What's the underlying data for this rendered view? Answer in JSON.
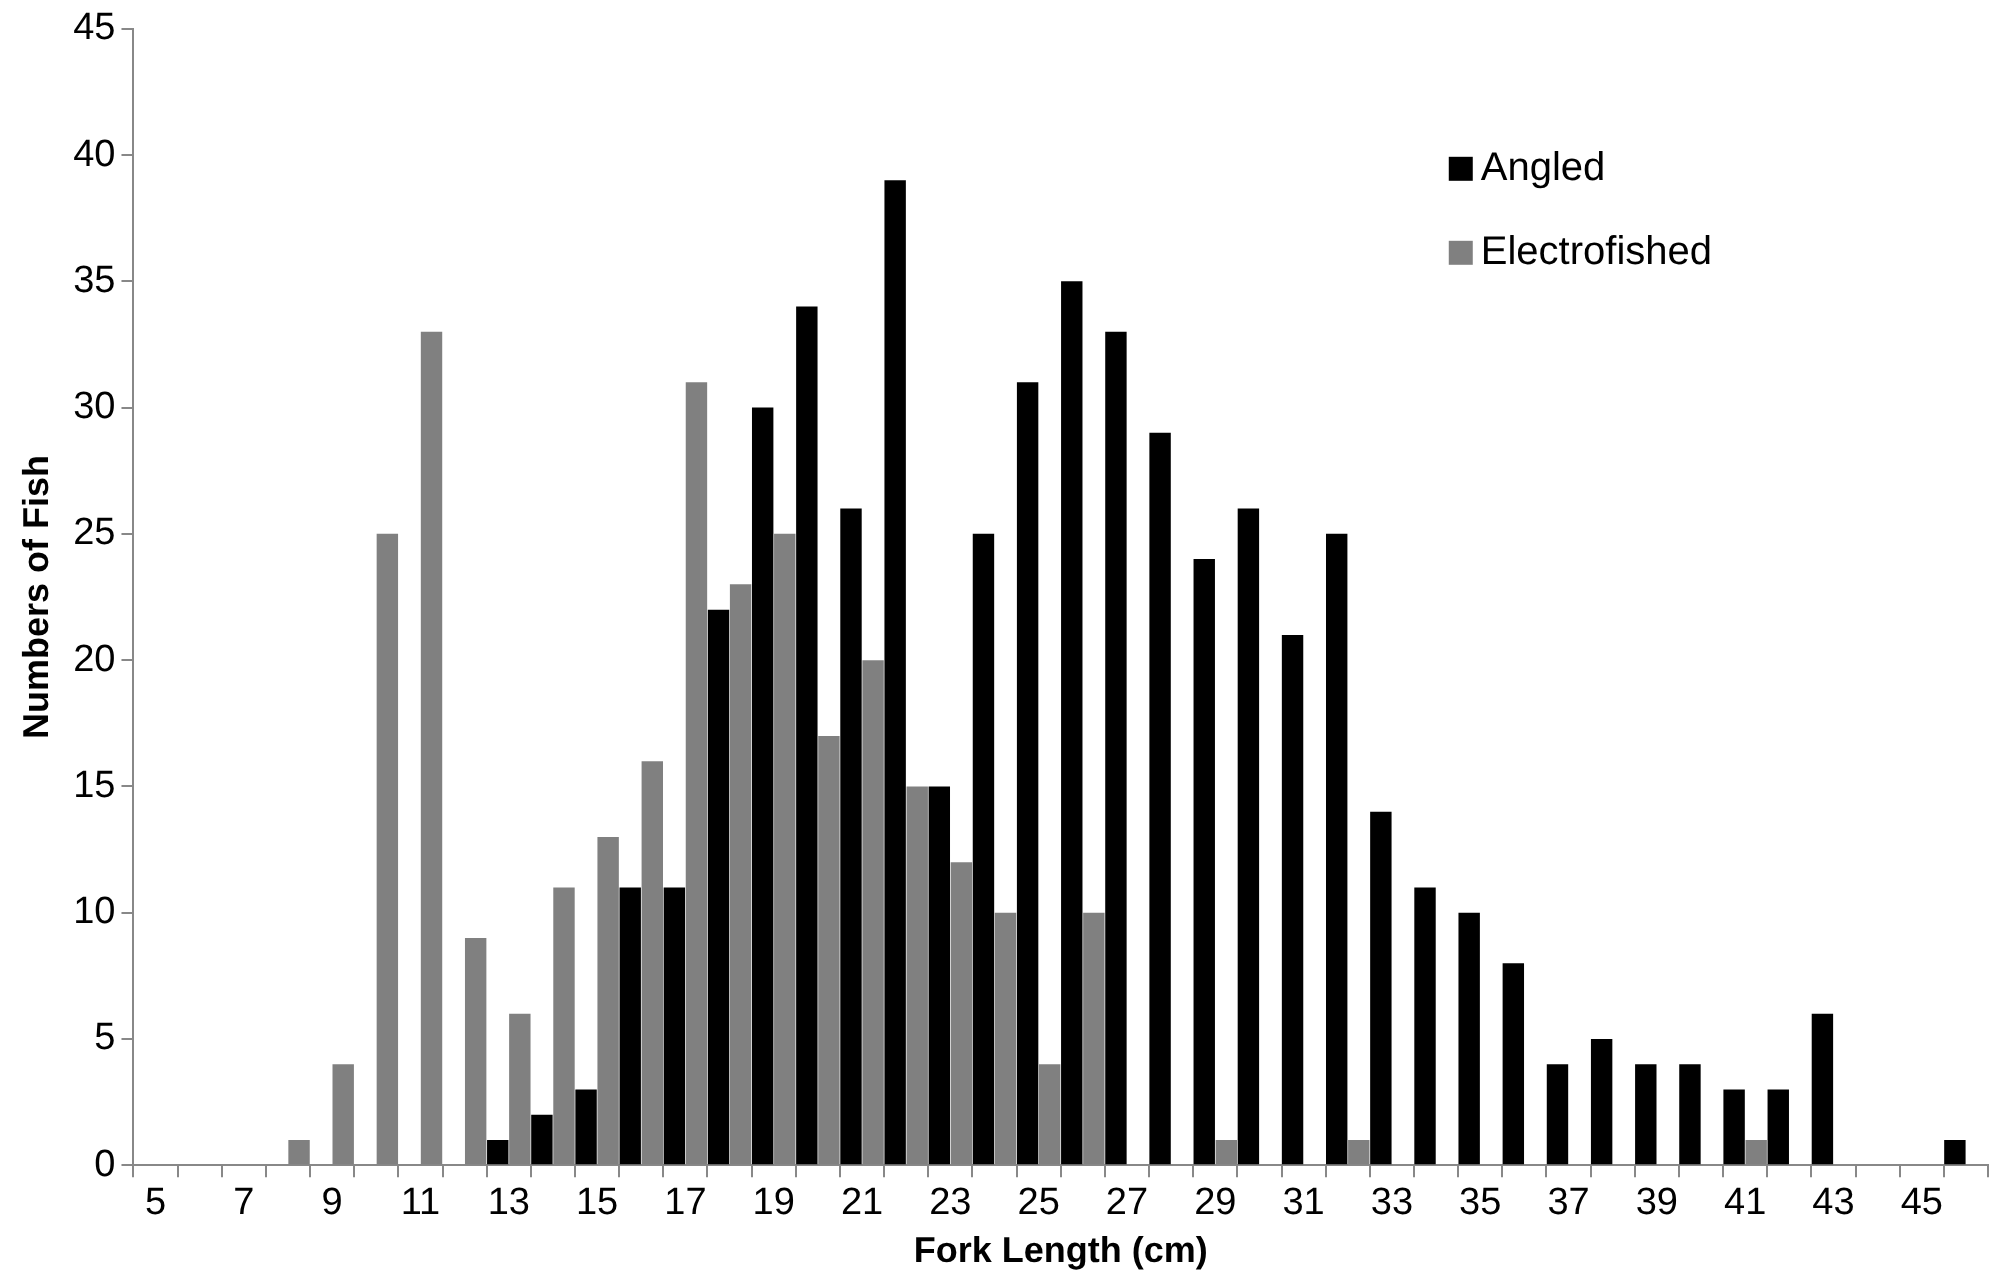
{
  "chart_data": {
    "type": "bar",
    "xlabel": "Fork Length (cm)",
    "ylabel": "Numbers of Fish",
    "categories": [
      "5",
      null,
      "7",
      null,
      "9",
      null,
      "11",
      null,
      "13",
      null,
      "15",
      null,
      "17",
      null,
      "19",
      null,
      "21",
      null,
      "23",
      null,
      "25",
      null,
      "27",
      null,
      "29",
      null,
      "31",
      null,
      "33",
      null,
      "35",
      null,
      "37",
      null,
      "39",
      null,
      "41",
      null,
      "43",
      null,
      "45",
      null
    ],
    "series": [
      {
        "name": "Angled",
        "color": "#000000",
        "values": [
          0,
          0,
          0,
          0,
          0,
          0,
          0,
          0,
          1,
          2,
          3,
          11,
          11,
          22,
          30,
          34,
          26,
          39,
          15,
          25,
          31,
          35,
          33,
          29,
          24,
          26,
          21,
          25,
          14,
          11,
          10,
          8,
          4,
          5,
          4,
          4,
          3,
          3,
          6,
          0,
          0,
          1
        ]
      },
      {
        "name": "Electrofished",
        "color": "#808080",
        "values": [
          0,
          0,
          0,
          1,
          4,
          25,
          33,
          9,
          6,
          11,
          13,
          16,
          31,
          23,
          25,
          17,
          20,
          15,
          12,
          10,
          4,
          10,
          0,
          0,
          1,
          0,
          0,
          1,
          0,
          0,
          0,
          0,
          0,
          0,
          0,
          0,
          1,
          0,
          0,
          0,
          0,
          0
        ]
      }
    ],
    "ylim": [
      0,
      45
    ],
    "yticks": [
      0,
      5,
      10,
      15,
      20,
      25,
      30,
      35,
      40,
      45
    ],
    "grid": false,
    "legend": "top right"
  }
}
